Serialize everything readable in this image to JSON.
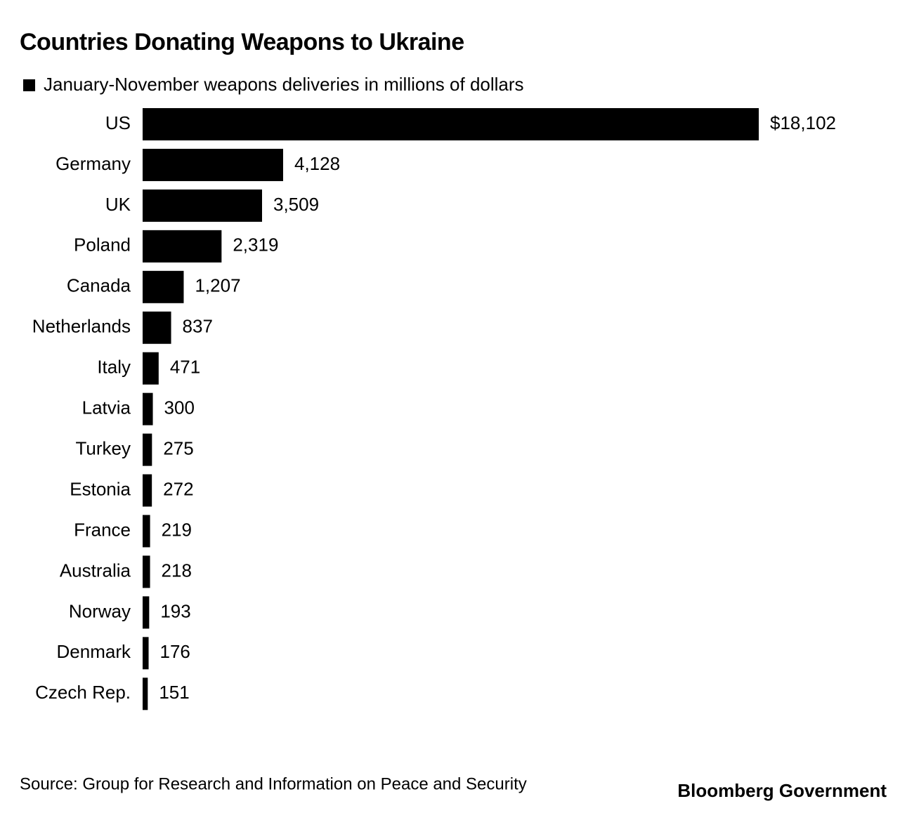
{
  "chart_data": {
    "type": "bar",
    "orientation": "horizontal",
    "title": "Countries Donating Weapons to Ukraine",
    "categories": [
      "US",
      "Germany",
      "UK",
      "Poland",
      "Canada",
      "Netherlands",
      "Italy",
      "Latvia",
      "Turkey",
      "Estonia",
      "France",
      "Australia",
      "Norway",
      "Denmark",
      "Czech Rep."
    ],
    "series": [
      {
        "name": "January-November weapons deliveries in millions of dollars",
        "color": "#000000",
        "values": [
          18102,
          4128,
          3509,
          2319,
          1207,
          837,
          471,
          300,
          275,
          272,
          219,
          218,
          193,
          176,
          151
        ],
        "value_labels": [
          "$18,102",
          "4,128",
          "3,509",
          "2,319",
          "1,207",
          "837",
          "471",
          "300",
          "275",
          "272",
          "219",
          "218",
          "193",
          "176",
          "151"
        ]
      }
    ],
    "source": "Source: Group for Research and Information on Peace and Security",
    "brand": "Bloomberg Government"
  }
}
